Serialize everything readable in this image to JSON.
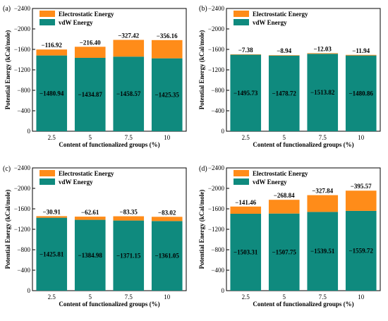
{
  "figure": {
    "colors": {
      "vdw": "#0f8a7e",
      "electrostatic": "#ff8c19",
      "axis": "#000000"
    }
  },
  "chart_data": [
    {
      "type": "bar",
      "stacked": true,
      "panel": "(a)",
      "categories": [
        "2.5",
        "5",
        "7.5",
        "10"
      ],
      "xlabel": "Content of functionalized groups (%)",
      "ylabel": "Potential Energy (kCal/mole)",
      "ylim": [
        0,
        -2400
      ],
      "yticks": [
        "0",
        "−400",
        "−800",
        "−1200",
        "−1600",
        "−2000",
        "−2400"
      ],
      "legend": "top-left",
      "series": [
        {
          "name": "vdW Energy",
          "values": [
            -1480.94,
            -1434.87,
            -1458.57,
            -1425.35
          ],
          "labels": [
            "−1480.94",
            "−1434.87",
            "−1458.57",
            "−1425.35"
          ]
        },
        {
          "name": "Electrostatic Energy",
          "values": [
            -116.92,
            -216.4,
            -327.42,
            -356.16
          ],
          "labels": [
            "−116.92",
            "−216.40",
            "−327.42",
            "−356.16"
          ]
        }
      ]
    },
    {
      "type": "bar",
      "stacked": true,
      "panel": "(b)",
      "categories": [
        "2.5",
        "5",
        "7.5",
        "10"
      ],
      "xlabel": "Content of functionalized groups (%)",
      "ylabel": "Potential Energy (kCal/mole)",
      "ylim": [
        0,
        -2400
      ],
      "yticks": [
        "0",
        "−400",
        "−800",
        "−1200",
        "−1600",
        "−2000",
        "−2400"
      ],
      "legend": "top-left",
      "series": [
        {
          "name": "vdW Energy",
          "values": [
            -1495.73,
            -1478.72,
            -1513.82,
            -1480.86
          ],
          "labels": [
            "−1495.73",
            "−1478.72",
            "−1513.82",
            "−1480.86"
          ]
        },
        {
          "name": "Electrostatic Energy",
          "values": [
            -7.38,
            -8.94,
            -12.03,
            -11.94
          ],
          "labels": [
            "−7.38",
            "−8.94",
            "−12.03",
            "−11.94"
          ]
        }
      ]
    },
    {
      "type": "bar",
      "stacked": true,
      "panel": "(c)",
      "categories": [
        "2.5",
        "5",
        "7.5",
        "10"
      ],
      "xlabel": "Content of functionalized groups (%)",
      "ylabel": "Potential Energy (kCal/mole)",
      "ylim": [
        0,
        -2400
      ],
      "yticks": [
        "0",
        "−400",
        "−800",
        "−1200",
        "−1600",
        "−2000",
        "−2400"
      ],
      "legend": "top-left",
      "series": [
        {
          "name": "vdW Energy",
          "values": [
            -1425.81,
            -1384.98,
            -1371.15,
            -1361.05
          ],
          "labels": [
            "−1425.81",
            "−1384.98",
            "−1371.15",
            "−1361.05"
          ]
        },
        {
          "name": "Electrostatic Energy",
          "values": [
            -30.91,
            -62.61,
            -83.35,
            -83.02
          ],
          "labels": [
            "−30.91",
            "−62.61",
            "−83.35",
            "−83.02"
          ]
        }
      ]
    },
    {
      "type": "bar",
      "stacked": true,
      "panel": "(d)",
      "categories": [
        "2.5",
        "5",
        "7.5",
        "10"
      ],
      "xlabel": "Content of functionalized groups (%)",
      "ylabel": "Potential Energy (kCal/mole)",
      "ylim": [
        0,
        -2400
      ],
      "yticks": [
        "0",
        "−400",
        "−800",
        "−1200",
        "−1600",
        "−2000",
        "−2400"
      ],
      "legend": "top-left",
      "series": [
        {
          "name": "vdW Energy",
          "values": [
            -1503.31,
            -1507.75,
            -1539.51,
            -1559.72
          ],
          "labels": [
            "−1503.31",
            "−1507.75",
            "−1539.51",
            "−1559.72"
          ]
        },
        {
          "name": "Electrostatic Energy",
          "values": [
            -141.46,
            -268.84,
            -327.84,
            -395.57
          ],
          "labels": [
            "−141.46",
            "−268.84",
            "−327.84",
            "−395.57"
          ]
        }
      ]
    }
  ]
}
